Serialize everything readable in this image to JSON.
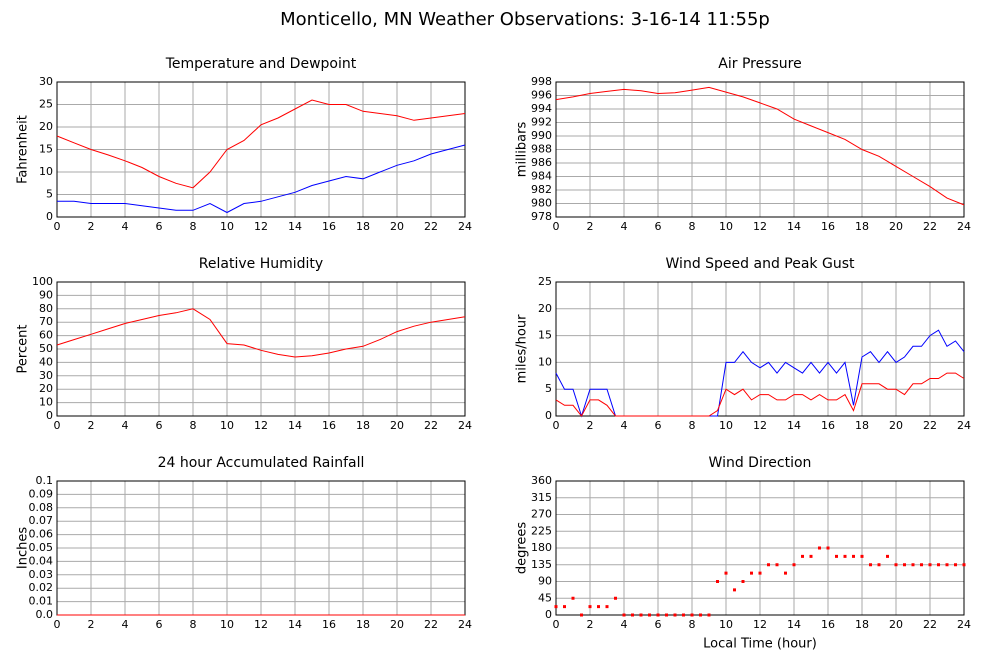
{
  "title": "Monticello, MN Weather Observations: 3-16-14 11:55p",
  "chart_data": [
    {
      "type": "line",
      "title": "Temperature and Dewpoint",
      "ylabel": "Fahrenheit",
      "x": [
        0,
        1,
        2,
        3,
        4,
        5,
        6,
        7,
        8,
        9,
        10,
        11,
        12,
        13,
        14,
        15,
        16,
        17,
        18,
        19,
        20,
        21,
        22,
        23,
        24
      ],
      "series": [
        {
          "color": "#ff0000",
          "values": [
            18,
            16.5,
            15,
            13.8,
            12.5,
            11,
            9,
            7.5,
            6.5,
            10,
            15,
            17,
            20.5,
            22,
            24,
            26,
            25,
            25,
            23.5,
            23,
            22.5,
            21.5,
            22,
            22.5,
            23
          ]
        },
        {
          "color": "#0000ff",
          "values": [
            3.5,
            3.5,
            3,
            3,
            3,
            2.5,
            2,
            1.5,
            1.5,
            3,
            1,
            3,
            3.5,
            4.5,
            5.5,
            7,
            8,
            9,
            8.5,
            10,
            11.5,
            12.5,
            14,
            15,
            16
          ]
        }
      ],
      "xlim": [
        0,
        24
      ],
      "xticks": [
        0,
        2,
        4,
        6,
        8,
        10,
        12,
        14,
        16,
        18,
        20,
        22,
        24
      ],
      "ylim": [
        0,
        30
      ],
      "yticks": [
        0,
        5,
        10,
        15,
        20,
        25,
        30
      ],
      "grid": true
    },
    {
      "type": "line",
      "title": "Air Pressure",
      "ylabel": "millibars",
      "x": [
        0,
        1,
        2,
        3,
        4,
        5,
        6,
        7,
        8,
        9,
        10,
        11,
        12,
        13,
        14,
        15,
        16,
        17,
        18,
        19,
        20,
        21,
        22,
        23,
        24
      ],
      "series": [
        {
          "color": "#ff0000",
          "values": [
            995.4,
            995.8,
            996.3,
            996.6,
            996.9,
            996.7,
            996.3,
            996.4,
            996.8,
            997.2,
            996.5,
            995.8,
            994.9,
            994,
            992.5,
            991.5,
            990.5,
            989.5,
            988,
            987,
            985.5,
            984,
            982.5,
            980.8,
            979.8
          ]
        }
      ],
      "xlim": [
        0,
        24
      ],
      "xticks": [
        0,
        2,
        4,
        6,
        8,
        10,
        12,
        14,
        16,
        18,
        20,
        22,
        24
      ],
      "ylim": [
        978,
        998
      ],
      "yticks": [
        978,
        980,
        982,
        984,
        986,
        988,
        990,
        992,
        994,
        996,
        998
      ],
      "grid": true
    },
    {
      "type": "line",
      "title": "Relative Humidity",
      "ylabel": "Percent",
      "x": [
        0,
        1,
        2,
        3,
        4,
        5,
        6,
        7,
        8,
        9,
        10,
        11,
        12,
        13,
        14,
        15,
        16,
        17,
        18,
        19,
        20,
        21,
        22,
        23,
        24
      ],
      "series": [
        {
          "color": "#ff0000",
          "values": [
            53,
            57,
            61,
            65,
            69,
            72,
            75,
            77,
            80,
            72,
            54,
            53,
            49,
            46,
            44,
            45,
            47,
            50,
            52,
            57,
            63,
            67,
            70,
            72,
            74
          ]
        }
      ],
      "xlim": [
        0,
        24
      ],
      "xticks": [
        0,
        2,
        4,
        6,
        8,
        10,
        12,
        14,
        16,
        18,
        20,
        22,
        24
      ],
      "ylim": [
        0,
        100
      ],
      "yticks": [
        0,
        10,
        20,
        30,
        40,
        50,
        60,
        70,
        80,
        90,
        100
      ],
      "grid": true
    },
    {
      "type": "line",
      "title": "Wind Speed and Peak Gust",
      "ylabel": "miles/hour",
      "x": [
        0,
        0.5,
        1,
        1.5,
        2,
        2.5,
        3,
        3.5,
        4,
        4.5,
        5,
        5.5,
        6,
        6.5,
        7,
        7.5,
        8,
        8.5,
        9,
        9.5,
        10,
        10.5,
        11,
        11.5,
        12,
        12.5,
        13,
        13.5,
        14,
        14.5,
        15,
        15.5,
        16,
        16.5,
        17,
        17.5,
        18,
        18.5,
        19,
        19.5,
        20,
        20.5,
        21,
        21.5,
        22,
        22.5,
        23,
        23.5,
        24
      ],
      "series": [
        {
          "color": "#0000ff",
          "values": [
            8,
            5,
            5,
            0,
            5,
            5,
            5,
            0,
            0,
            0,
            0,
            0,
            0,
            0,
            0,
            0,
            0,
            0,
            0,
            0,
            10,
            10,
            12,
            10,
            9,
            10,
            8,
            10,
            9,
            8,
            10,
            8,
            10,
            8,
            10,
            2,
            11,
            12,
            10,
            12,
            10,
            11,
            13,
            13,
            15,
            16,
            13,
            14,
            12
          ]
        },
        {
          "color": "#ff0000",
          "values": [
            3,
            2,
            2,
            0,
            3,
            3,
            2,
            0,
            0,
            0,
            0,
            0,
            0,
            0,
            0,
            0,
            0,
            0,
            0,
            1,
            5,
            4,
            5,
            3,
            4,
            4,
            3,
            3,
            4,
            4,
            3,
            4,
            3,
            3,
            4,
            1,
            6,
            6,
            6,
            5,
            5,
            4,
            6,
            6,
            7,
            7,
            8,
            8,
            7
          ]
        }
      ],
      "xlim": [
        0,
        24
      ],
      "xticks": [
        0,
        2,
        4,
        6,
        8,
        10,
        12,
        14,
        16,
        18,
        20,
        22,
        24
      ],
      "ylim": [
        0,
        25
      ],
      "yticks": [
        0,
        5,
        10,
        15,
        20,
        25
      ],
      "grid": true
    },
    {
      "type": "line",
      "title": "24 hour Accumulated Rainfall",
      "ylabel": "Inches",
      "x": [
        0,
        24
      ],
      "series": [
        {
          "color": "#ff0000",
          "values": [
            0,
            0
          ]
        }
      ],
      "xlim": [
        0,
        24
      ],
      "xticks": [
        0,
        2,
        4,
        6,
        8,
        10,
        12,
        14,
        16,
        18,
        20,
        22,
        24
      ],
      "ylim": [
        0,
        0.1
      ],
      "yticks": [
        {
          "value": 0,
          "label": "0.0"
        },
        0.01,
        0.02,
        0.03,
        0.04,
        0.05,
        0.06,
        0.07,
        0.08,
        0.09,
        0.1
      ],
      "grid": true
    },
    {
      "type": "scatter",
      "title": "Wind Direction",
      "ylabel": "degrees",
      "xlabel": "Local Time (hour)",
      "x": [
        0,
        0.5,
        1,
        1.5,
        2,
        2.5,
        3,
        3.5,
        4,
        4.5,
        5,
        5.5,
        6,
        6.5,
        7,
        7.5,
        8,
        8.5,
        9,
        9.5,
        10,
        10.5,
        11,
        11.5,
        12,
        12.5,
        13,
        13.5,
        14,
        14.5,
        15,
        15.5,
        16,
        16.5,
        17,
        17.5,
        18,
        18.5,
        19,
        19.5,
        20,
        20.5,
        21,
        21.5,
        22,
        22.5,
        23,
        23.5,
        24
      ],
      "series": [
        {
          "color": "#ff0000",
          "values": [
            22.5,
            22.5,
            45,
            0,
            22.5,
            22.5,
            22.5,
            45,
            0,
            0,
            0,
            0,
            0,
            0,
            0,
            0,
            0,
            0,
            0,
            90,
            112.5,
            67.5,
            90,
            112.5,
            112.5,
            135,
            135,
            112.5,
            135,
            157.5,
            157.5,
            180,
            180,
            157.5,
            157.5,
            157.5,
            157.5,
            135,
            135,
            157.5,
            135,
            135,
            135,
            135,
            135,
            135,
            135,
            135,
            135
          ]
        }
      ],
      "xlim": [
        0,
        24
      ],
      "xticks": [
        0,
        2,
        4,
        6,
        8,
        10,
        12,
        14,
        16,
        18,
        20,
        22,
        24
      ],
      "ylim": [
        0,
        360
      ],
      "yticks": [
        0,
        45,
        90,
        135,
        180,
        225,
        270,
        315,
        360
      ],
      "grid": true
    }
  ]
}
